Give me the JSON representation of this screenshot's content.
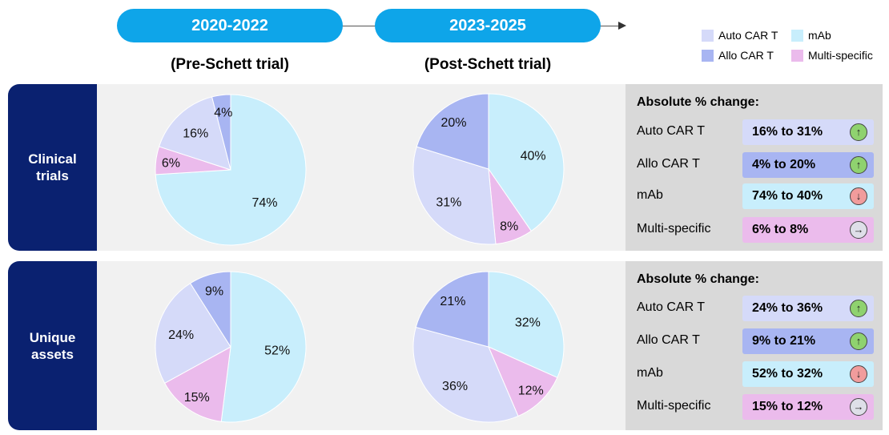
{
  "periods": [
    {
      "label": "2020-2022",
      "subtitle": "(Pre-Schett trial)"
    },
    {
      "label": "2023-2025",
      "subtitle": "(Post-Schett trial)"
    }
  ],
  "legend": [
    {
      "name": "Auto CAR T",
      "color": "#d5daf9"
    },
    {
      "name": "mAb",
      "color": "#c8eefc"
    },
    {
      "name": "Allo CAR T",
      "color": "#a8b5f2"
    },
    {
      "name": "Multi-specific",
      "color": "#ebbbec"
    }
  ],
  "rows": [
    {
      "label": "Clinical trials",
      "change_title": "Absolute % change:",
      "changes": [
        {
          "category": "Auto CAR T",
          "value": "16% to 31%",
          "direction": "up"
        },
        {
          "category": "Allo CAR T",
          "value": "4% to 20%",
          "direction": "up"
        },
        {
          "category": "mAb",
          "value": "74% to 40%",
          "direction": "down"
        },
        {
          "category": "Multi-specific",
          "value": "6% to 8%",
          "direction": "flat"
        }
      ]
    },
    {
      "label": "Unique assets",
      "change_title": "Absolute % change:",
      "changes": [
        {
          "category": "Auto CAR T",
          "value": "24% to 36%",
          "direction": "up"
        },
        {
          "category": "Allo CAR T",
          "value": "9% to 21%",
          "direction": "up"
        },
        {
          "category": "mAb",
          "value": "52% to 32%",
          "direction": "down"
        },
        {
          "category": "Multi-specific",
          "value": "15% to 12%",
          "direction": "flat"
        }
      ]
    }
  ],
  "direction_icons": {
    "up": "↑",
    "down": "↓",
    "flat": "→"
  },
  "direction_colors": {
    "up": "#8fd26f",
    "down": "#f19c9c",
    "flat": "#dedfe8"
  },
  "chart_data": [
    {
      "type": "pie",
      "row": "Clinical trials",
      "period": "2020-2022",
      "categories": [
        "mAb",
        "Multi-specific",
        "Auto CAR T",
        "Allo CAR T"
      ],
      "values": [
        74,
        6,
        16,
        4
      ],
      "labels": [
        "74%",
        "6%",
        "16%",
        "4%"
      ]
    },
    {
      "type": "pie",
      "row": "Clinical trials",
      "period": "2023-2025",
      "categories": [
        "mAb",
        "Multi-specific",
        "Auto CAR T",
        "Allo CAR T"
      ],
      "values": [
        40,
        8,
        31,
        20
      ],
      "labels": [
        "40%",
        "8%",
        "31%",
        "20%"
      ]
    },
    {
      "type": "pie",
      "row": "Unique assets",
      "period": "2020-2022",
      "categories": [
        "mAb",
        "Multi-specific",
        "Auto CAR T",
        "Allo CAR T"
      ],
      "values": [
        52,
        15,
        24,
        9
      ],
      "labels": [
        "52%",
        "15%",
        "24%",
        "9%"
      ]
    },
    {
      "type": "pie",
      "row": "Unique assets",
      "period": "2023-2025",
      "categories": [
        "mAb",
        "Multi-specific",
        "Auto CAR T",
        "Allo CAR T"
      ],
      "values": [
        32,
        12,
        36,
        21
      ],
      "labels": [
        "32%",
        "12%",
        "36%",
        "21%"
      ]
    }
  ]
}
